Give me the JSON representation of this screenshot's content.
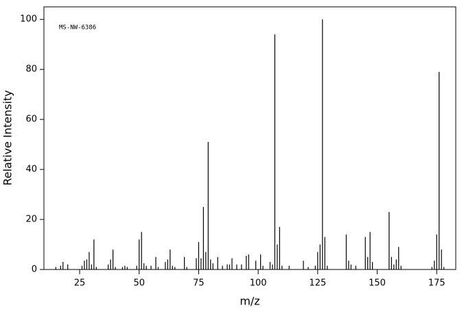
{
  "chart_data": {
    "type": "stick",
    "annotation": "MS-NW-6386",
    "x_label": "m/z",
    "y_label": "Relative Intensity",
    "color": "#000000",
    "xlim": [
      10,
      183
    ],
    "xticks": [
      25,
      50,
      75,
      100,
      125,
      150,
      175
    ],
    "ylim": [
      0,
      105
    ],
    "yticks": [
      0,
      20,
      40,
      60,
      80,
      100
    ],
    "x": [
      15,
      17,
      18,
      20,
      26,
      27,
      28,
      29,
      30,
      31,
      32,
      37,
      38,
      39,
      40,
      43,
      44,
      45,
      49,
      50,
      51,
      52,
      53,
      55,
      57,
      58,
      61,
      62,
      63,
      64,
      65,
      69,
      70,
      74,
      75,
      76,
      77,
      78,
      79,
      80,
      81,
      83,
      85,
      87,
      88,
      89,
      91,
      93,
      95,
      96,
      99,
      101,
      102,
      105,
      106,
      107,
      108,
      109,
      110,
      113,
      119,
      121,
      124,
      125,
      126,
      127,
      128,
      129,
      137,
      138,
      139,
      141,
      145,
      146,
      147,
      148,
      155,
      156,
      157,
      158,
      159,
      160,
      173,
      174,
      175,
      176,
      177,
      178
    ],
    "values": [
      1,
      1.5,
      3,
      2,
      1.5,
      3.5,
      4,
      7,
      2,
      12,
      1,
      2,
      4,
      8,
      1,
      1,
      1.5,
      1,
      1.5,
      12,
      15,
      2.5,
      1.5,
      1.5,
      5,
      1,
      3,
      4,
      8,
      1.5,
      1,
      5,
      1,
      4.5,
      11,
      4.5,
      25,
      7,
      51,
      4,
      2.5,
      5,
      1.5,
      2,
      2,
      4.5,
      2,
      2,
      5.5,
      6,
      3.5,
      6,
      1.5,
      3,
      2,
      94,
      10,
      17,
      1.5,
      1.5,
      3.5,
      1,
      1.5,
      7,
      10,
      100,
      13,
      1.5,
      14,
      3.5,
      2,
      1.5,
      13,
      5,
      15,
      3,
      23,
      5,
      2,
      4,
      9,
      1.5,
      1,
      3.5,
      14,
      79,
      8,
      1
    ]
  }
}
